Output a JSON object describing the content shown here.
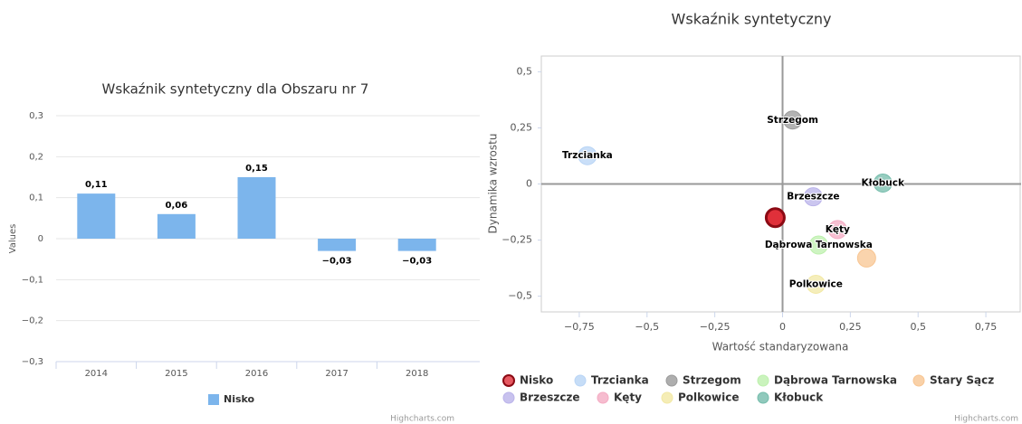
{
  "chart_data": [
    {
      "type": "bar",
      "title": "Wskaźnik syntetyczny dla Obszaru nr 7",
      "y_label": "Values",
      "categories": [
        "2014",
        "2015",
        "2016",
        "2017",
        "2018"
      ],
      "series": [
        {
          "name": "Nisko",
          "color": "#7cb5ec",
          "values": [
            0.11,
            0.06,
            0.15,
            -0.03,
            -0.03
          ],
          "value_labels": [
            "0,11",
            "0,06",
            "0,15",
            "−0,03",
            "−0,03"
          ]
        }
      ],
      "ylim": [
        -0.3,
        0.3
      ],
      "yticks": [
        {
          "value": 0.3,
          "label": "0,3"
        },
        {
          "value": 0.2,
          "label": "0,2"
        },
        {
          "value": 0.1,
          "label": "0,1"
        },
        0,
        {
          "value": -0.1,
          "label": "−0,1"
        },
        {
          "value": -0.2,
          "label": "−0,2"
        },
        {
          "value": -0.3,
          "label": "−0,3"
        }
      ],
      "grid": true,
      "legend": "bottom",
      "credits": "Highcharts.com"
    },
    {
      "type": "scatter",
      "title": "Wskaźnik syntetyczny",
      "x_label": "Wartość standaryzowana",
      "y_label": "Dynamika wzrostu",
      "series": [
        {
          "name": "Nisko",
          "color": "#e0303a",
          "x": [
            -0.027
          ],
          "values": [
            -0.15
          ],
          "data_label": false
        },
        {
          "name": "Trzcianka",
          "color": "#b8d4f5",
          "x": [
            -0.72
          ],
          "values": [
            0.126
          ],
          "data_label": true
        },
        {
          "name": "Strzegom",
          "color": "#9a9a9a",
          "x": [
            0.037
          ],
          "values": [
            0.285
          ],
          "data_label": true
        },
        {
          "name": "Dąbrowa Tarnowska",
          "color": "#bdf0ad",
          "x": [
            0.133
          ],
          "values": [
            -0.272
          ],
          "data_label": true
        },
        {
          "name": "Stary Sącz",
          "color": "#f8c592",
          "x": [
            0.31
          ],
          "values": [
            -0.33
          ],
          "data_label": false
        },
        {
          "name": "Brzeszcze",
          "color": "#bab3ea",
          "x": [
            0.113
          ],
          "values": [
            -0.057
          ],
          "data_label": true
        },
        {
          "name": "Kęty",
          "color": "#f4abc3",
          "x": [
            0.203
          ],
          "values": [
            -0.203
          ],
          "data_label": true
        },
        {
          "name": "Polkowice",
          "color": "#f2e8a4",
          "x": [
            0.123
          ],
          "values": [
            -0.447
          ],
          "data_label": true
        },
        {
          "name": "Kłobuck",
          "color": "#74bcab",
          "x": [
            0.37
          ],
          "values": [
            0.004
          ],
          "data_label": true
        }
      ],
      "xlim": [
        -0.89,
        0.88
      ],
      "xticks": [
        {
          "value": -0.75,
          "label": "−0,75"
        },
        {
          "value": -0.5,
          "label": "−0,5"
        },
        {
          "value": -0.25,
          "label": "−0,25"
        },
        0,
        {
          "value": 0.25,
          "label": "0,25"
        },
        {
          "value": 0.5,
          "label": "0,5"
        },
        {
          "value": 0.75,
          "label": "0,75"
        }
      ],
      "ylim": [
        -0.57,
        0.57
      ],
      "yticks": [
        {
          "value": 0.5,
          "label": "0,5"
        },
        {
          "value": 0.25,
          "label": "0,25"
        },
        0,
        {
          "value": -0.25,
          "label": "−0,25"
        },
        {
          "value": -0.5,
          "label": "−0,5"
        }
      ],
      "legend": "bottom",
      "credits": "Highcharts.com"
    }
  ]
}
